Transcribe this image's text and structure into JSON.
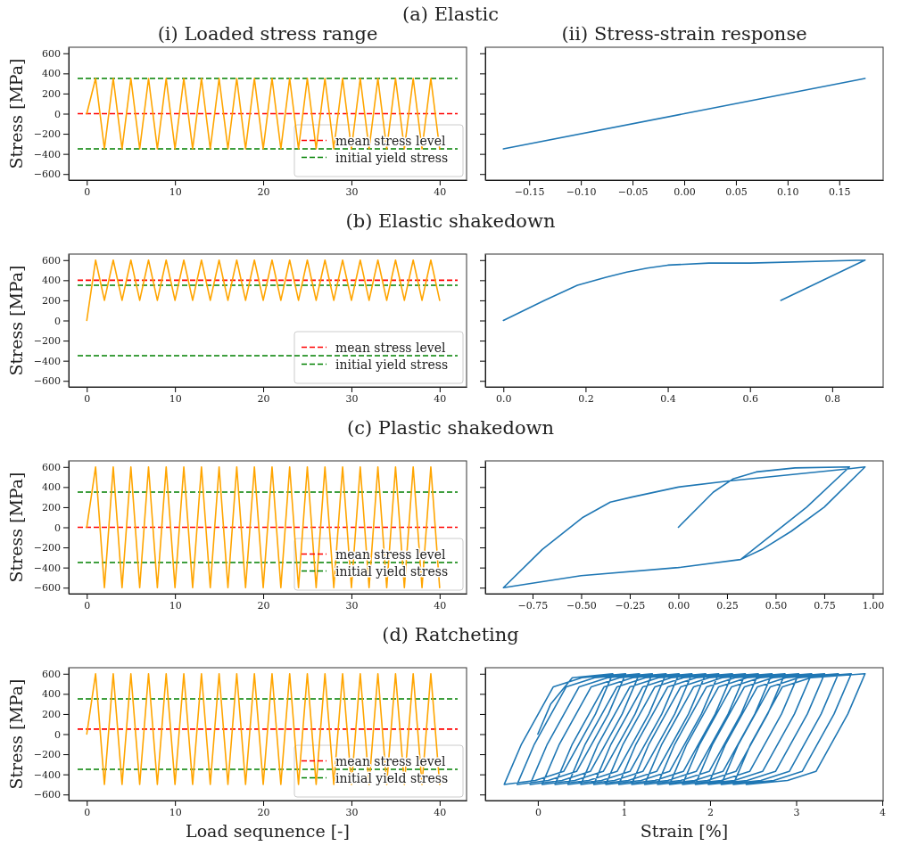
{
  "chart_data": [
    {
      "type": "line",
      "title": "(a) Elastic",
      "subtitle": "(i)  Loaded stress range",
      "ylabel": "Stress [MPa]",
      "x": [
        0,
        1,
        2,
        3,
        4,
        5,
        6,
        7,
        8,
        9,
        10,
        11,
        12,
        13,
        14,
        15,
        16,
        17,
        18,
        19,
        20,
        21,
        22,
        23,
        24,
        25,
        26,
        27,
        28,
        29,
        30,
        31,
        32,
        33,
        34,
        35,
        36,
        37,
        38,
        39,
        40
      ],
      "series": [
        {
          "color": "#ffa500",
          "values": [
            0,
            350,
            -350,
            350,
            -350,
            350,
            -350,
            350,
            -350,
            350,
            -350,
            350,
            -350,
            350,
            -350,
            350,
            -350,
            350,
            -350,
            350,
            -350,
            350,
            -350,
            350,
            -350,
            350,
            -350,
            350,
            -350,
            350,
            -350,
            350,
            -350,
            350,
            -350,
            350,
            -350,
            350,
            -350,
            350,
            -350
          ]
        }
      ],
      "ref_lines": [
        {
          "axis": "y",
          "value": 0,
          "label": "mean stress level",
          "color": "#ff0000",
          "line_style": "dashed"
        },
        {
          "axis": "y",
          "value": 350,
          "label": "initial yield stress",
          "color": "#008000",
          "line_style": "dashed"
        },
        {
          "axis": "y",
          "value": -350,
          "color": "#008000",
          "line_style": "dashed"
        }
      ],
      "legend": "bottom right",
      "xlim": [
        -2.05,
        43.05
      ],
      "xticks": [
        0,
        10,
        20,
        30,
        40
      ],
      "ylim": [
        -660,
        660
      ],
      "yticks": [
        {
          "value": -600,
          "label": "−600"
        },
        {
          "value": -400,
          "label": "−400"
        },
        {
          "value": -200,
          "label": "−200"
        },
        0,
        200,
        400,
        600
      ]
    },
    {
      "type": "line",
      "subtitle": "(ii) Stress-strain response",
      "series": [
        {
          "color": "#1f77b4",
          "x": [
            0,
            0.175,
            -0.175,
            0.175
          ],
          "values": [
            0,
            350,
            -350,
            350
          ]
        }
      ],
      "xlim": [
        -0.1925,
        0.1925
      ],
      "xticks": [
        {
          "value": -0.15,
          "label": "−0.15"
        },
        {
          "value": -0.1,
          "label": "−0.10"
        },
        {
          "value": -0.05,
          "label": "−0.05"
        },
        {
          "value": 0,
          "label": "0.00"
        },
        {
          "value": 0.05,
          "label": "0.05"
        },
        {
          "value": 0.1,
          "label": "0.10"
        },
        {
          "value": 0.15,
          "label": "0.15"
        }
      ],
      "ylim": [
        -660,
        660
      ],
      "yticks": [
        -600,
        -400,
        -200,
        0,
        200,
        400,
        600
      ],
      "tick_labels": "x"
    },
    {
      "type": "line",
      "title": "(b) Elastic shakedown",
      "ylabel": "Stress [MPa]",
      "x": [
        0,
        1,
        2,
        3,
        4,
        5,
        6,
        7,
        8,
        9,
        10,
        11,
        12,
        13,
        14,
        15,
        16,
        17,
        18,
        19,
        20,
        21,
        22,
        23,
        24,
        25,
        26,
        27,
        28,
        29,
        30,
        31,
        32,
        33,
        34,
        35,
        36,
        37,
        38,
        39,
        40
      ],
      "series": [
        {
          "color": "#ffa500",
          "values": [
            0,
            600,
            200,
            600,
            200,
            600,
            200,
            600,
            200,
            600,
            200,
            600,
            200,
            600,
            200,
            600,
            200,
            600,
            200,
            600,
            200,
            600,
            200,
            600,
            200,
            600,
            200,
            600,
            200,
            600,
            200,
            600,
            200,
            600,
            200,
            600,
            200,
            600,
            200,
            600,
            200
          ]
        }
      ],
      "ref_lines": [
        {
          "axis": "y",
          "value": 400,
          "label": "mean stress level",
          "color": "#ff0000",
          "line_style": "dashed"
        },
        {
          "axis": "y",
          "value": 350,
          "label": "initial yield stress",
          "color": "#008000",
          "line_style": "dashed"
        },
        {
          "axis": "y",
          "value": -350,
          "color": "#008000",
          "line_style": "dashed"
        }
      ],
      "legend": "bottom right",
      "xlim": [
        -2.05,
        43.05
      ],
      "xticks": [
        0,
        10,
        20,
        30,
        40
      ],
      "ylim": [
        -660,
        660
      ],
      "yticks": [
        {
          "value": -600,
          "label": "−600"
        },
        {
          "value": -400,
          "label": "−400"
        },
        {
          "value": -200,
          "label": "−200"
        },
        0,
        200,
        400,
        600
      ]
    },
    {
      "type": "line",
      "series": [
        {
          "color": "#1f77b4",
          "x": [
            0,
            0.1,
            0.18,
            0.25,
            0.3,
            0.35,
            0.4,
            0.5,
            0.6,
            0.88,
            0.675,
            0.88,
            0.675,
            0.88
          ],
          "values": [
            0,
            200,
            350,
            430,
            480,
            520,
            550,
            570,
            570,
            600,
            200,
            600,
            200,
            600
          ]
        }
      ],
      "xlim": [
        -0.044,
        0.924
      ],
      "xticks": [
        {
          "value": 0,
          "label": "0.0"
        },
        {
          "value": 0.2,
          "label": "0.2"
        },
        {
          "value": 0.4,
          "label": "0.4"
        },
        {
          "value": 0.6,
          "label": "0.6"
        },
        {
          "value": 0.8,
          "label": "0.8"
        }
      ],
      "ylim": [
        -660,
        660
      ],
      "yticks": [
        -600,
        -400,
        -200,
        0,
        200,
        400,
        600
      ],
      "tick_labels": "x"
    },
    {
      "type": "line",
      "title": "(c) Plastic shakedown",
      "ylabel": "Stress [MPa]",
      "x": [
        0,
        1,
        2,
        3,
        4,
        5,
        6,
        7,
        8,
        9,
        10,
        11,
        12,
        13,
        14,
        15,
        16,
        17,
        18,
        19,
        20,
        21,
        22,
        23,
        24,
        25,
        26,
        27,
        28,
        29,
        30,
        31,
        32,
        33,
        34,
        35,
        36,
        37,
        38,
        39,
        40
      ],
      "series": [
        {
          "color": "#ffa500",
          "values": [
            0,
            600,
            -600,
            600,
            -600,
            600,
            -600,
            600,
            -600,
            600,
            -600,
            600,
            -600,
            600,
            -600,
            600,
            -600,
            600,
            -600,
            600,
            -600,
            600,
            -600,
            600,
            -600,
            600,
            -600,
            600,
            -600,
            600,
            -600,
            600,
            -600,
            600,
            -600,
            600,
            -600,
            600,
            -600,
            600,
            -600
          ]
        }
      ],
      "ref_lines": [
        {
          "axis": "y",
          "value": 0,
          "label": "mean stress level",
          "color": "#ff0000",
          "line_style": "dashed"
        },
        {
          "axis": "y",
          "value": 350,
          "label": "initial yield stress",
          "color": "#008000",
          "line_style": "dashed"
        },
        {
          "axis": "y",
          "value": -350,
          "color": "#008000",
          "line_style": "dashed"
        }
      ],
      "legend": "bottom right",
      "xlim": [
        -2.05,
        43.05
      ],
      "xticks": [
        0,
        10,
        20,
        30,
        40
      ],
      "ylim": [
        -660,
        660
      ],
      "yticks": [
        {
          "value": -600,
          "label": "−600"
        },
        {
          "value": -400,
          "label": "−400"
        },
        {
          "value": -200,
          "label": "−200"
        },
        0,
        200,
        400,
        600
      ]
    },
    {
      "type": "line",
      "series": [
        {
          "color": "#1f77b4",
          "x": [
            0,
            0.18,
            0.28,
            0.4,
            0.6,
            0.88,
            0.66,
            0.32,
            0,
            -0.5,
            -0.9,
            -0.7,
            -0.49,
            -0.35,
            -0.24,
            0,
            0.26,
            0.87,
            0.96,
            0.75,
            0.58,
            0.43,
            0.32,
            0,
            -0.5,
            -0.9,
            -0.7,
            -0.49,
            -0.35,
            -0.24,
            0,
            0.26,
            0.87,
            0.96
          ],
          "values": [
            0,
            350,
            480,
            550,
            590,
            600,
            200,
            -320,
            -400,
            -480,
            -600,
            -220,
            100,
            250,
            300,
            400,
            460,
            580,
            600,
            200,
            -40,
            -220,
            -320,
            -400,
            -480,
            -600,
            -220,
            100,
            250,
            300,
            400,
            460,
            580,
            600
          ]
        }
      ],
      "xlim": [
        -0.993,
        1.053
      ],
      "xticks": [
        {
          "value": -0.75,
          "label": "−0.75"
        },
        {
          "value": -0.5,
          "label": "−0.50"
        },
        {
          "value": -0.25,
          "label": "−0.25"
        },
        {
          "value": 0,
          "label": "0.00"
        },
        {
          "value": 0.25,
          "label": "0.25"
        },
        {
          "value": 0.5,
          "label": "0.50"
        },
        {
          "value": 0.75,
          "label": "0.75"
        },
        {
          "value": 1,
          "label": "1.00"
        }
      ],
      "ylim": [
        -660,
        660
      ],
      "yticks": [
        -600,
        -400,
        -200,
        0,
        200,
        400,
        600
      ],
      "tick_labels": "x"
    },
    {
      "type": "line",
      "title": "(d) Ratcheting",
      "xlabel": "Load sequnence [-]",
      "ylabel": "Stress [MPa]",
      "x": [
        0,
        1,
        2,
        3,
        4,
        5,
        6,
        7,
        8,
        9,
        10,
        11,
        12,
        13,
        14,
        15,
        16,
        17,
        18,
        19,
        20,
        21,
        22,
        23,
        24,
        25,
        26,
        27,
        28,
        29,
        30,
        31,
        32,
        33,
        34,
        35,
        36,
        37,
        38,
        39,
        40
      ],
      "series": [
        {
          "color": "#ffa500",
          "values": [
            0,
            600,
            -500,
            600,
            -500,
            600,
            -500,
            600,
            -500,
            600,
            -500,
            600,
            -500,
            600,
            -500,
            600,
            -500,
            600,
            -500,
            600,
            -500,
            600,
            -500,
            600,
            -500,
            600,
            -500,
            600,
            -500,
            600,
            -500,
            600,
            -500,
            600,
            -500,
            600,
            -500,
            600,
            -500,
            600,
            -500
          ]
        }
      ],
      "ref_lines": [
        {
          "axis": "y",
          "value": 50,
          "label": "mean stress level",
          "color": "#ff0000",
          "line_style": "dashed"
        },
        {
          "axis": "y",
          "value": 350,
          "label": "initial yield stress",
          "color": "#008000",
          "line_style": "dashed"
        },
        {
          "axis": "y",
          "value": -350,
          "color": "#008000",
          "line_style": "dashed"
        }
      ],
      "legend": "bottom right",
      "xlim": [
        -2.05,
        43.05
      ],
      "xticks": [
        0,
        10,
        20,
        30,
        40
      ],
      "ylim": [
        -660,
        660
      ],
      "yticks": [
        {
          "value": -600,
          "label": "−600"
        },
        {
          "value": -400,
          "label": "−400"
        },
        {
          "value": -200,
          "label": "−200"
        },
        0,
        200,
        400,
        600
      ]
    },
    {
      "type": "line",
      "xlabel": "Strain [%]",
      "series": [
        {
          "color": "#1f77b4",
          "x": [
            0,
            0.15,
            0.4,
            0.87,
            0.67,
            0.3,
            -0.03,
            -0.39,
            -0.19,
            0.18,
            0.51,
            1.02,
            0.82,
            0.45,
            0.12,
            -0.24,
            -0.04,
            0.33,
            0.66,
            1.18,
            0.98,
            0.61,
            0.28,
            -0.09,
            0.11,
            0.48,
            0.81,
            1.33,
            1.13,
            0.76,
            0.43,
            0.05,
            0.25,
            0.62,
            0.95,
            1.49,
            1.29,
            0.92,
            0.59,
            0.2,
            0.4,
            0.77,
            1.1,
            1.64,
            1.44,
            1.07,
            0.74,
            0.35,
            0.55,
            0.92,
            1.25,
            1.79,
            1.59,
            1.22,
            0.89,
            0.5,
            0.7,
            1.07,
            1.4,
            1.95,
            1.75,
            1.38,
            1.05,
            0.65,
            0.85,
            1.22,
            1.55,
            2.1,
            1.9,
            1.53,
            1.2,
            0.79,
            0.99,
            1.36,
            1.69,
            2.26,
            2.06,
            1.69,
            1.36,
            0.94,
            1.14,
            1.51,
            1.84,
            2.41,
            2.21,
            1.84,
            1.51,
            1.09,
            1.29,
            1.66,
            1.99,
            2.56,
            2.36,
            1.99,
            1.66,
            1.24,
            1.44,
            1.81,
            2.14,
            2.72,
            2.52,
            2.15,
            1.82,
            1.39,
            1.59,
            1.96,
            2.29,
            2.87,
            2.67,
            2.3,
            1.97,
            1.53,
            1.73,
            2.1,
            2.43,
            3.03,
            2.83,
            2.46,
            2.13,
            1.68,
            1.88,
            2.25,
            2.58,
            3.18,
            2.98,
            2.61,
            2.28,
            1.83,
            2.03,
            2.4,
            2.73,
            3.33,
            3.13,
            2.76,
            2.43,
            1.98,
            2.18,
            2.55,
            2.88,
            3.49,
            3.29,
            2.92,
            2.59,
            2.13,
            2.33,
            2.7,
            3.03,
            3.64,
            3.44,
            3.07,
            2.74,
            2.27,
            2.47,
            2.84,
            3.17,
            3.8,
            3.6,
            3.23,
            2.9,
            2.42
          ],
          "values": [
            0,
            300,
            560,
            600,
            200,
            -370,
            -460,
            -500,
            -100,
            470,
            560,
            600,
            200,
            -370,
            -460,
            -500,
            -100,
            470,
            560,
            600,
            200,
            -370,
            -460,
            -500,
            -100,
            470,
            560,
            600,
            200,
            -370,
            -460,
            -500,
            -100,
            470,
            560,
            600,
            200,
            -370,
            -460,
            -500,
            -100,
            470,
            560,
            600,
            200,
            -370,
            -460,
            -500,
            -100,
            470,
            560,
            600,
            200,
            -370,
            -460,
            -500,
            -100,
            470,
            560,
            600,
            200,
            -370,
            -460,
            -500,
            -100,
            470,
            560,
            600,
            200,
            -370,
            -460,
            -500,
            -100,
            470,
            560,
            600,
            200,
            -370,
            -460,
            -500,
            -100,
            470,
            560,
            600,
            200,
            -370,
            -460,
            -500,
            -100,
            470,
            560,
            600,
            200,
            -370,
            -460,
            -500,
            -100,
            470,
            560,
            600,
            200,
            -370,
            -460,
            -500,
            -100,
            470,
            560,
            600,
            200,
            -370,
            -460,
            -500,
            -100,
            470,
            560,
            600,
            200,
            -370,
            -460,
            -500,
            -100,
            470,
            560,
            600,
            200,
            -370,
            -460,
            -500,
            -100,
            470,
            560,
            600,
            200,
            -370,
            -460,
            -500,
            -100,
            470,
            560,
            600,
            200,
            -370,
            -460,
            -500,
            -100,
            470,
            560,
            600,
            200,
            -370,
            -460,
            -500,
            -100,
            470,
            560,
            600,
            200,
            -370,
            -460,
            -500
          ]
        }
      ],
      "xlim": [
        -0.61,
        4.01
      ],
      "xticks": [
        0,
        1,
        2,
        3,
        4
      ],
      "ylim": [
        -660,
        660
      ],
      "yticks": [
        -600,
        -400,
        -200,
        0,
        200,
        400,
        600
      ],
      "tick_labels": "x"
    }
  ]
}
